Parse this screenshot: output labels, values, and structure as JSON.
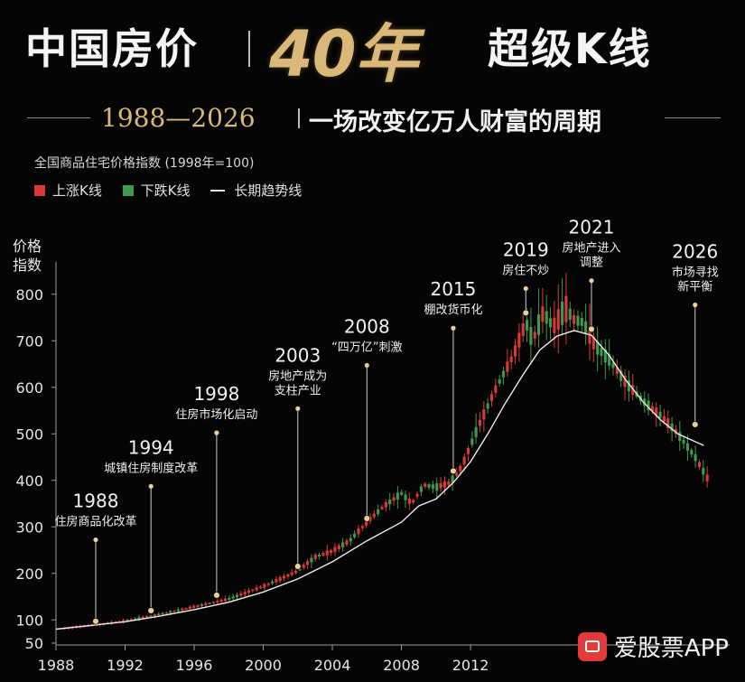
{
  "header": {
    "title_left": "中国房价",
    "title_highlight": "40年",
    "title_right": "超级K线",
    "subtitle_years": "1988—2026",
    "subtitle_text": "一场改变亿万人财富的周期"
  },
  "colors": {
    "up": "#d93a35",
    "down": "#3d9a4e",
    "trend": "#ececec",
    "gold": "#d9b87a",
    "marker": "#e6cf9b"
  },
  "watermark": {
    "text": "爱股票APP"
  },
  "chart_data": {
    "type": "candlestick",
    "subtitle": "全国商品住宅价格指数 (1998年=100)",
    "ylabel": "价格\n指数",
    "ylim": [
      50,
      850
    ],
    "xlim": [
      1988,
      2027
    ],
    "y_ticks": [
      50,
      100,
      200,
      300,
      400,
      500,
      600,
      700,
      800
    ],
    "x_ticks": [
      1988,
      1992,
      1996,
      2000,
      2004,
      2008,
      2012
    ],
    "legend": [
      {
        "key": "up",
        "label": "上涨K线"
      },
      {
        "key": "down",
        "label": "下跌K线"
      },
      {
        "key": "trend",
        "label": "长期趋势线"
      }
    ],
    "series": [
      {
        "name": "上涨K线",
        "kind": "candle-up"
      },
      {
        "name": "下跌K线",
        "kind": "candle-down"
      },
      {
        "name": "长期趋势线",
        "kind": "line"
      }
    ],
    "annotations": [
      {
        "year": "1988",
        "text": "住房商品化改革",
        "x": 1990.3,
        "y": 97,
        "label_y": 280
      },
      {
        "year": "1994",
        "text": "城镇住房制度改革",
        "x": 1993.5,
        "y": 120,
        "label_y": 395
      },
      {
        "year": "1998",
        "text": "住房市场化启动",
        "x": 1997.3,
        "y": 153,
        "label_y": 510
      },
      {
        "year": "2003",
        "text": "房地产成为\n支柱产业",
        "x": 2002.0,
        "y": 215,
        "label_y": 562
      },
      {
        "year": "2008",
        "text": "“四万亿”刺激",
        "x": 2006.0,
        "y": 318,
        "label_y": 655
      },
      {
        "year": "2015",
        "text": "棚改货币化",
        "x": 2011.0,
        "y": 420,
        "label_y": 735
      },
      {
        "year": "2019",
        "text": "房住不炒",
        "x": 2015.2,
        "y": 760,
        "label_y": 820
      },
      {
        "year": "2021",
        "text": "房地产进入\n调整",
        "x": 2019.0,
        "y": 725,
        "label_y": 837
      },
      {
        "year": "2026",
        "text": "市场寻找\n新平衡",
        "x": 2025.0,
        "y": 520,
        "label_y": 785
      }
    ],
    "trend_line": [
      [
        1988,
        80
      ],
      [
        1990,
        88
      ],
      [
        1992,
        96
      ],
      [
        1994,
        108
      ],
      [
        1996,
        122
      ],
      [
        1998,
        138
      ],
      [
        2000,
        160
      ],
      [
        2002,
        188
      ],
      [
        2004,
        225
      ],
      [
        2006,
        270
      ],
      [
        2008,
        310
      ],
      [
        2009,
        345
      ],
      [
        2010,
        360
      ],
      [
        2011,
        395
      ],
      [
        2012,
        440
      ],
      [
        2013,
        500
      ],
      [
        2014,
        565
      ],
      [
        2015,
        625
      ],
      [
        2016,
        680
      ],
      [
        2017,
        710
      ],
      [
        2018,
        722
      ],
      [
        2019,
        712
      ],
      [
        2020,
        670
      ],
      [
        2021,
        615
      ],
      [
        2022,
        568
      ],
      [
        2023,
        530
      ],
      [
        2024,
        500
      ],
      [
        2025.5,
        475
      ]
    ],
    "price_path": [
      [
        1988.5,
        82
      ],
      [
        1990,
        88
      ],
      [
        1992,
        98
      ],
      [
        1994,
        112
      ],
      [
        1996,
        128
      ],
      [
        1998,
        145
      ],
      [
        2000,
        172
      ],
      [
        2002,
        205
      ],
      [
        2003,
        235
      ],
      [
        2004,
        248
      ],
      [
        2005,
        270
      ],
      [
        2006,
        310
      ],
      [
        2007,
        345
      ],
      [
        2008,
        372
      ],
      [
        2008.6,
        350
      ],
      [
        2009.3,
        390
      ],
      [
        2010,
        385
      ],
      [
        2010.8,
        395
      ],
      [
        2011.5,
        430
      ],
      [
        2012.5,
        520
      ],
      [
        2013.5,
        600
      ],
      [
        2014.5,
        670
      ],
      [
        2015.2,
        740
      ],
      [
        2015.6,
        700
      ],
      [
        2016.2,
        760
      ],
      [
        2016.8,
        730
      ],
      [
        2017.5,
        770
      ],
      [
        2018,
        745
      ],
      [
        2018.5,
        740
      ],
      [
        2019.2,
        690
      ],
      [
        2020,
        660
      ],
      [
        2021,
        610
      ],
      [
        2022,
        570
      ],
      [
        2023,
        540
      ],
      [
        2024,
        500
      ],
      [
        2025,
        450
      ],
      [
        2025.7,
        405
      ]
    ]
  }
}
